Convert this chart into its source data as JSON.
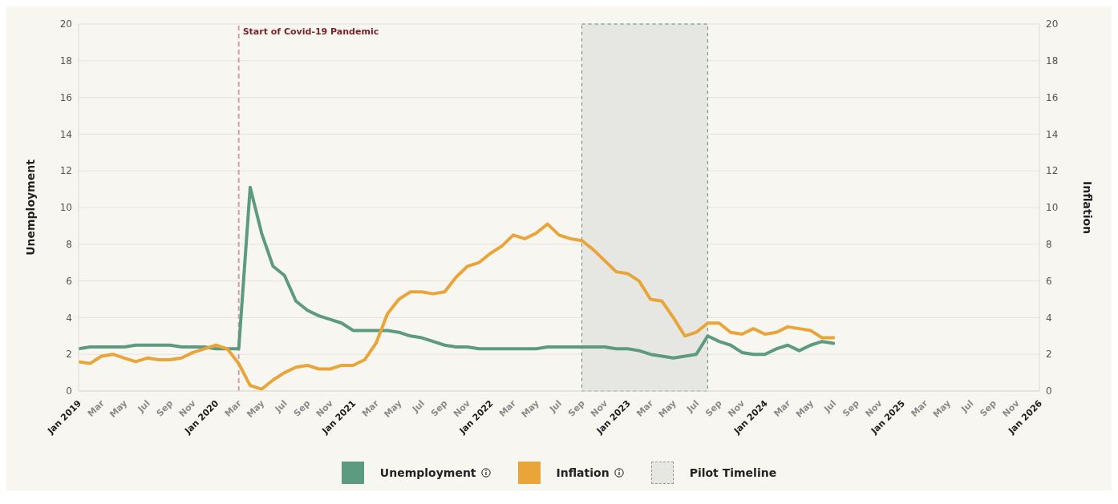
{
  "chart_data": {
    "type": "line",
    "ylabel": "Unemployment",
    "y2label": "Inflation",
    "x": [
      "2019-01",
      "2019-02",
      "2019-03",
      "2019-04",
      "2019-05",
      "2019-06",
      "2019-07",
      "2019-08",
      "2019-09",
      "2019-10",
      "2019-11",
      "2019-12",
      "2020-01",
      "2020-02",
      "2020-03",
      "2020-04",
      "2020-05",
      "2020-06",
      "2020-07",
      "2020-08",
      "2020-09",
      "2020-10",
      "2020-11",
      "2020-12",
      "2021-01",
      "2021-02",
      "2021-03",
      "2021-04",
      "2021-05",
      "2021-06",
      "2021-07",
      "2021-08",
      "2021-09",
      "2021-10",
      "2021-11",
      "2021-12",
      "2022-01",
      "2022-02",
      "2022-03",
      "2022-04",
      "2022-05",
      "2022-06",
      "2022-07",
      "2022-08",
      "2022-09",
      "2022-10",
      "2022-11",
      "2022-12",
      "2023-01",
      "2023-02",
      "2023-03",
      "2023-04",
      "2023-05",
      "2023-06",
      "2023-07",
      "2023-08",
      "2023-09",
      "2023-10",
      "2023-11",
      "2023-12",
      "2024-01",
      "2024-02",
      "2024-03",
      "2024-04",
      "2024-05",
      "2024-06",
      "2024-07"
    ],
    "series": [
      {
        "name": "Unemployment",
        "color": "#5c9b7e",
        "values": [
          2.3,
          2.4,
          2.4,
          2.4,
          2.4,
          2.5,
          2.5,
          2.5,
          2.5,
          2.4,
          2.4,
          2.4,
          2.3,
          2.3,
          2.3,
          11.1,
          8.6,
          6.8,
          6.3,
          4.9,
          4.4,
          4.1,
          3.9,
          3.7,
          3.3,
          3.3,
          3.3,
          3.3,
          3.2,
          3.0,
          2.9,
          2.7,
          2.5,
          2.4,
          2.4,
          2.3,
          2.3,
          2.3,
          2.3,
          2.3,
          2.3,
          2.4,
          2.4,
          2.4,
          2.4,
          2.4,
          2.4,
          2.3,
          2.3,
          2.2,
          2.0,
          1.9,
          1.8,
          1.9,
          2.0,
          3.0,
          2.7,
          2.5,
          2.1,
          2.0,
          2.0,
          2.3,
          2.5,
          2.2,
          2.5,
          2.7,
          2.6
        ]
      },
      {
        "name": "Inflation",
        "color": "#e9a53a",
        "axis": "y2",
        "values": [
          1.6,
          1.5,
          1.9,
          2.0,
          1.8,
          1.6,
          1.8,
          1.7,
          1.7,
          1.8,
          2.1,
          2.3,
          2.5,
          2.3,
          1.5,
          0.3,
          0.1,
          0.6,
          1.0,
          1.3,
          1.4,
          1.2,
          1.2,
          1.4,
          1.4,
          1.7,
          2.6,
          4.2,
          5.0,
          5.4,
          5.4,
          5.3,
          5.4,
          6.2,
          6.8,
          7.0,
          7.5,
          7.9,
          8.5,
          8.3,
          8.6,
          9.1,
          8.5,
          8.3,
          8.2,
          7.7,
          7.1,
          6.5,
          6.4,
          6.0,
          5.0,
          4.9,
          4.0,
          3.0,
          3.2,
          3.7,
          3.7,
          3.2,
          3.1,
          3.4,
          3.1,
          3.2,
          3.5,
          3.4,
          3.3,
          2.9,
          2.9
        ]
      }
    ],
    "xlim": [
      "2019-01",
      "2026-01"
    ],
    "xticks": [
      {
        "value": "2019-01",
        "label": "Jan 2019"
      },
      {
        "value": "2019-03",
        "label": "Mar"
      },
      {
        "value": "2019-05",
        "label": "May"
      },
      {
        "value": "2019-07",
        "label": "Jul"
      },
      {
        "value": "2019-09",
        "label": "Sep"
      },
      {
        "value": "2019-11",
        "label": "Nov"
      },
      {
        "value": "2020-01",
        "label": "Jan 2020"
      },
      {
        "value": "2020-03",
        "label": "Mar"
      },
      {
        "value": "2020-05",
        "label": "May"
      },
      {
        "value": "2020-07",
        "label": "Jul"
      },
      {
        "value": "2020-09",
        "label": "Sep"
      },
      {
        "value": "2020-11",
        "label": "Nov"
      },
      {
        "value": "2021-01",
        "label": "Jan 2021"
      },
      {
        "value": "2021-03",
        "label": "Mar"
      },
      {
        "value": "2021-05",
        "label": "May"
      },
      {
        "value": "2021-07",
        "label": "Jul"
      },
      {
        "value": "2021-09",
        "label": "Sep"
      },
      {
        "value": "2021-11",
        "label": "Nov"
      },
      {
        "value": "2022-01",
        "label": "Jan 2022"
      },
      {
        "value": "2022-03",
        "label": "Mar"
      },
      {
        "value": "2022-05",
        "label": "May"
      },
      {
        "value": "2022-07",
        "label": "Jul"
      },
      {
        "value": "2022-09",
        "label": "Sep"
      },
      {
        "value": "2022-11",
        "label": "Nov"
      },
      {
        "value": "2023-01",
        "label": "Jan 2023"
      },
      {
        "value": "2023-03",
        "label": "Mar"
      },
      {
        "value": "2023-05",
        "label": "May"
      },
      {
        "value": "2023-07",
        "label": "Jul"
      },
      {
        "value": "2023-09",
        "label": "Sep"
      },
      {
        "value": "2023-11",
        "label": "Nov"
      },
      {
        "value": "2024-01",
        "label": "Jan 2024"
      },
      {
        "value": "2024-03",
        "label": "Mar"
      },
      {
        "value": "2024-05",
        "label": "May"
      },
      {
        "value": "2024-07",
        "label": "Jul"
      },
      {
        "value": "2024-09",
        "label": "Sep"
      },
      {
        "value": "2024-11",
        "label": "Nov"
      },
      {
        "value": "2025-01",
        "label": "Jan 2025"
      },
      {
        "value": "2025-03",
        "label": "Mar"
      },
      {
        "value": "2025-05",
        "label": "May"
      },
      {
        "value": "2025-07",
        "label": "Jul"
      },
      {
        "value": "2025-09",
        "label": "Sep"
      },
      {
        "value": "2025-11",
        "label": "Nov"
      },
      {
        "value": "2026-01",
        "label": "Jan 2026"
      }
    ],
    "ylim": [
      0,
      20
    ],
    "yticks": [
      0,
      2,
      4,
      6,
      8,
      10,
      12,
      14,
      16,
      18,
      20
    ],
    "y2lim": [
      0,
      20
    ],
    "y2ticks": [
      0,
      2,
      4,
      6,
      8,
      10,
      12,
      14,
      16,
      18,
      20
    ],
    "ref_lines": [
      {
        "axis": "x",
        "value": "2020-03",
        "label": "Start of Covid-19 Pandemic",
        "color": "#d99aa5",
        "line_style": "dashed"
      }
    ],
    "bands": [
      {
        "axis": "x",
        "from": "2022-09",
        "to": "2023-08",
        "label": "Pilot Timeline",
        "color": "#e6e6e2"
      }
    ],
    "grid": "y",
    "legend": "bottom"
  }
}
